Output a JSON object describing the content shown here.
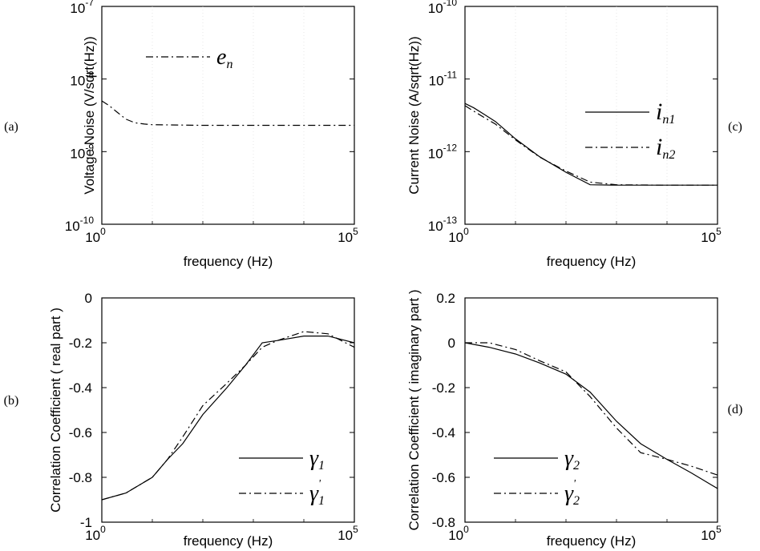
{
  "chart_data": [
    {
      "panel_label": "(a)",
      "type": "line",
      "xscale": "log",
      "yscale": "log",
      "xlim": [
        1,
        100000
      ],
      "ylim": [
        1e-10,
        1e-07
      ],
      "xlabel": "frequency (Hz)",
      "ylabel": "Voltage Noise (V/sqrt(Hz))",
      "xticks": [
        {
          "label": "10",
          "exp": "0"
        },
        {
          "label": "10",
          "exp": "5"
        }
      ],
      "yticks": [
        {
          "label": "10",
          "exp": "-10"
        },
        {
          "label": "10",
          "exp": "-9"
        },
        {
          "label": "10",
          "exp": "-8"
        },
        {
          "label": "10",
          "exp": "-7"
        }
      ],
      "legend_position": "top-left",
      "series": [
        {
          "name": "e",
          "subscript": "n",
          "style": "dashdot",
          "x": [
            1,
            1.4,
            2,
            3,
            4.5,
            7,
            10,
            100,
            1000,
            100000
          ],
          "y": [
            5e-09,
            4.3e-09,
            3.5e-09,
            2.8e-09,
            2.5e-09,
            2.4e-09,
            2.35e-09,
            2.3e-09,
            2.3e-09,
            2.3e-09
          ]
        }
      ]
    },
    {
      "panel_label": "(c)",
      "type": "line",
      "xscale": "log",
      "yscale": "log",
      "xlim": [
        1,
        100000
      ],
      "ylim": [
        1e-13,
        1e-10
      ],
      "xlabel": "frequency (Hz)",
      "ylabel": "Current Noise (A/sqrt(Hz))",
      "xticks": [
        {
          "label": "10",
          "exp": "0"
        },
        {
          "label": "10",
          "exp": "5"
        }
      ],
      "yticks": [
        {
          "label": "10",
          "exp": "-13"
        },
        {
          "label": "10",
          "exp": "-12"
        },
        {
          "label": "10",
          "exp": "-11"
        },
        {
          "label": "10",
          "exp": "-10"
        }
      ],
      "legend_position": "top-right",
      "series": [
        {
          "name": "i",
          "subscript": "n1",
          "style": "solid",
          "x": [
            1,
            1.5,
            2.5,
            4,
            10,
            30,
            100,
            300,
            1000,
            10000,
            100000
          ],
          "y": [
            4.6e-12,
            4e-12,
            3.2e-12,
            2.6e-12,
            1.5e-12,
            8.5e-13,
            5.2e-13,
            3.5e-13,
            3.45e-13,
            3.45e-13,
            3.45e-13
          ]
        },
        {
          "name": "i",
          "subscript": "n2",
          "style": "dashdot",
          "x": [
            1,
            1.5,
            2.5,
            4,
            10,
            30,
            100,
            300,
            1000,
            10000,
            100000
          ],
          "y": [
            4.3e-12,
            3.6e-12,
            2.9e-12,
            2.4e-12,
            1.45e-12,
            8.4e-13,
            5.4e-13,
            3.8e-13,
            3.5e-13,
            3.45e-13,
            3.45e-13
          ]
        }
      ]
    },
    {
      "panel_label": "(b)",
      "type": "line",
      "xscale": "log",
      "yscale": "linear",
      "xlim": [
        1,
        100000
      ],
      "ylim": [
        -1,
        0
      ],
      "xlabel": "frequency (Hz)",
      "ylabel": "Correlation Coefficient ( real part )",
      "xticks": [
        {
          "label": "10",
          "exp": "0"
        },
        {
          "label": "10",
          "exp": "5"
        }
      ],
      "yticks": [
        {
          "label": "-1",
          "v": -1
        },
        {
          "label": "-0.8",
          "v": -0.8
        },
        {
          "label": "-0.6",
          "v": -0.6
        },
        {
          "label": "-0.4",
          "v": -0.4
        },
        {
          "label": "-0.2",
          "v": -0.2
        },
        {
          "label": "0",
          "v": 0
        }
      ],
      "legend_position": "bottom-right",
      "series": [
        {
          "name": "γ",
          "subscript": "1",
          "style": "solid",
          "x": [
            1,
            3,
            10,
            20,
            40,
            100,
            300,
            700,
            1500,
            3000,
            10000,
            30000,
            100000
          ],
          "y": [
            -0.9,
            -0.87,
            -0.8,
            -0.72,
            -0.65,
            -0.52,
            -0.4,
            -0.3,
            -0.2,
            -0.19,
            -0.17,
            -0.17,
            -0.2
          ]
        },
        {
          "name": "γ",
          "subscript": "1",
          "prime": "'",
          "style": "dashdot",
          "x": [
            1,
            3,
            10,
            20,
            40,
            100,
            300,
            700,
            1500,
            3000,
            10000,
            30000,
            100000
          ],
          "y": [
            -0.9,
            -0.87,
            -0.8,
            -0.72,
            -0.62,
            -0.48,
            -0.38,
            -0.3,
            -0.22,
            -0.19,
            -0.15,
            -0.16,
            -0.22
          ]
        }
      ]
    },
    {
      "panel_label": "(d)",
      "type": "line",
      "xscale": "log",
      "yscale": "linear",
      "xlim": [
        1,
        100000
      ],
      "ylim": [
        -0.8,
        0.2
      ],
      "xlabel": "frequency (Hz)",
      "ylabel": "Correlation Coefficient ( imaginary part )",
      "xticks": [
        {
          "label": "10",
          "exp": "0"
        },
        {
          "label": "10",
          "exp": "5"
        }
      ],
      "yticks": [
        {
          "label": "-0.8",
          "v": -0.8
        },
        {
          "label": "-0.6",
          "v": -0.6
        },
        {
          "label": "-0.4",
          "v": -0.4
        },
        {
          "label": "-0.2",
          "v": -0.2
        },
        {
          "label": "0",
          "v": 0
        },
        {
          "label": "0.2",
          "v": 0.2
        }
      ],
      "legend_position": "bottom-left",
      "series": [
        {
          "name": "γ",
          "subscript": "2",
          "style": "solid",
          "x": [
            1,
            3,
            10,
            30,
            100,
            300,
            1000,
            3000,
            10000,
            30000,
            100000
          ],
          "y": [
            0,
            -0.02,
            -0.05,
            -0.09,
            -0.14,
            -0.22,
            -0.35,
            -0.45,
            -0.52,
            -0.58,
            -0.65
          ]
        },
        {
          "name": "γ",
          "subscript": "2",
          "prime": "'",
          "style": "dashdot",
          "x": [
            1,
            3,
            10,
            30,
            100,
            300,
            1000,
            3000,
            10000,
            30000,
            100000
          ],
          "y": [
            0,
            0,
            -0.03,
            -0.08,
            -0.13,
            -0.24,
            -0.38,
            -0.49,
            -0.52,
            -0.55,
            -0.59
          ]
        }
      ]
    }
  ]
}
